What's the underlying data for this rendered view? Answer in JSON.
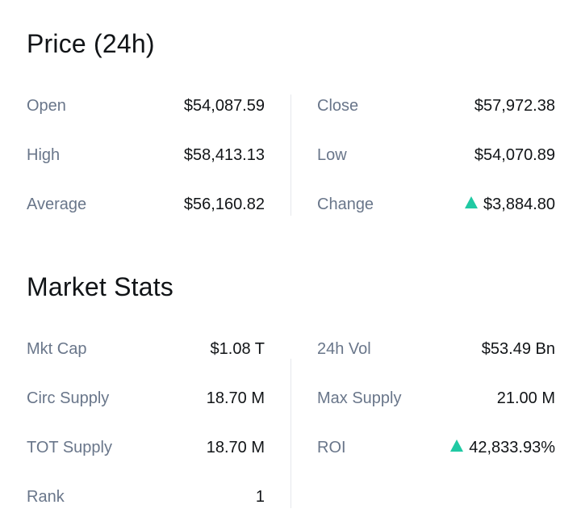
{
  "price": {
    "title": "Price (24h)",
    "left": [
      {
        "label": "Open",
        "value": "$54,087.59"
      },
      {
        "label": "High",
        "value": "$58,413.13"
      },
      {
        "label": "Average",
        "value": "$56,160.82"
      }
    ],
    "right": [
      {
        "label": "Close",
        "value": "$57,972.38"
      },
      {
        "label": "Low",
        "value": "$54,070.89"
      },
      {
        "label": "Change",
        "value": "$3,884.80",
        "trend": "up"
      }
    ]
  },
  "stats": {
    "title": "Market Stats",
    "left": [
      {
        "label": "Mkt Cap",
        "value": "$1.08 T"
      },
      {
        "label": "Circ Supply",
        "value": "18.70 M"
      },
      {
        "label": "TOT Supply",
        "value": "18.70 M"
      },
      {
        "label": "Rank",
        "value": "1"
      }
    ],
    "right": [
      {
        "label": "24h Vol",
        "value": "$53.49 Bn"
      },
      {
        "label": "Max Supply",
        "value": "21.00 M"
      },
      {
        "label": "ROI",
        "value": "42,833.93%",
        "trend": "up"
      }
    ]
  },
  "colors": {
    "label": "#69768a",
    "value": "#111417",
    "positive": "#20c9a3",
    "divider": "#e6e8ec"
  },
  "icons": {
    "trend_up": "triangle-up-icon"
  }
}
